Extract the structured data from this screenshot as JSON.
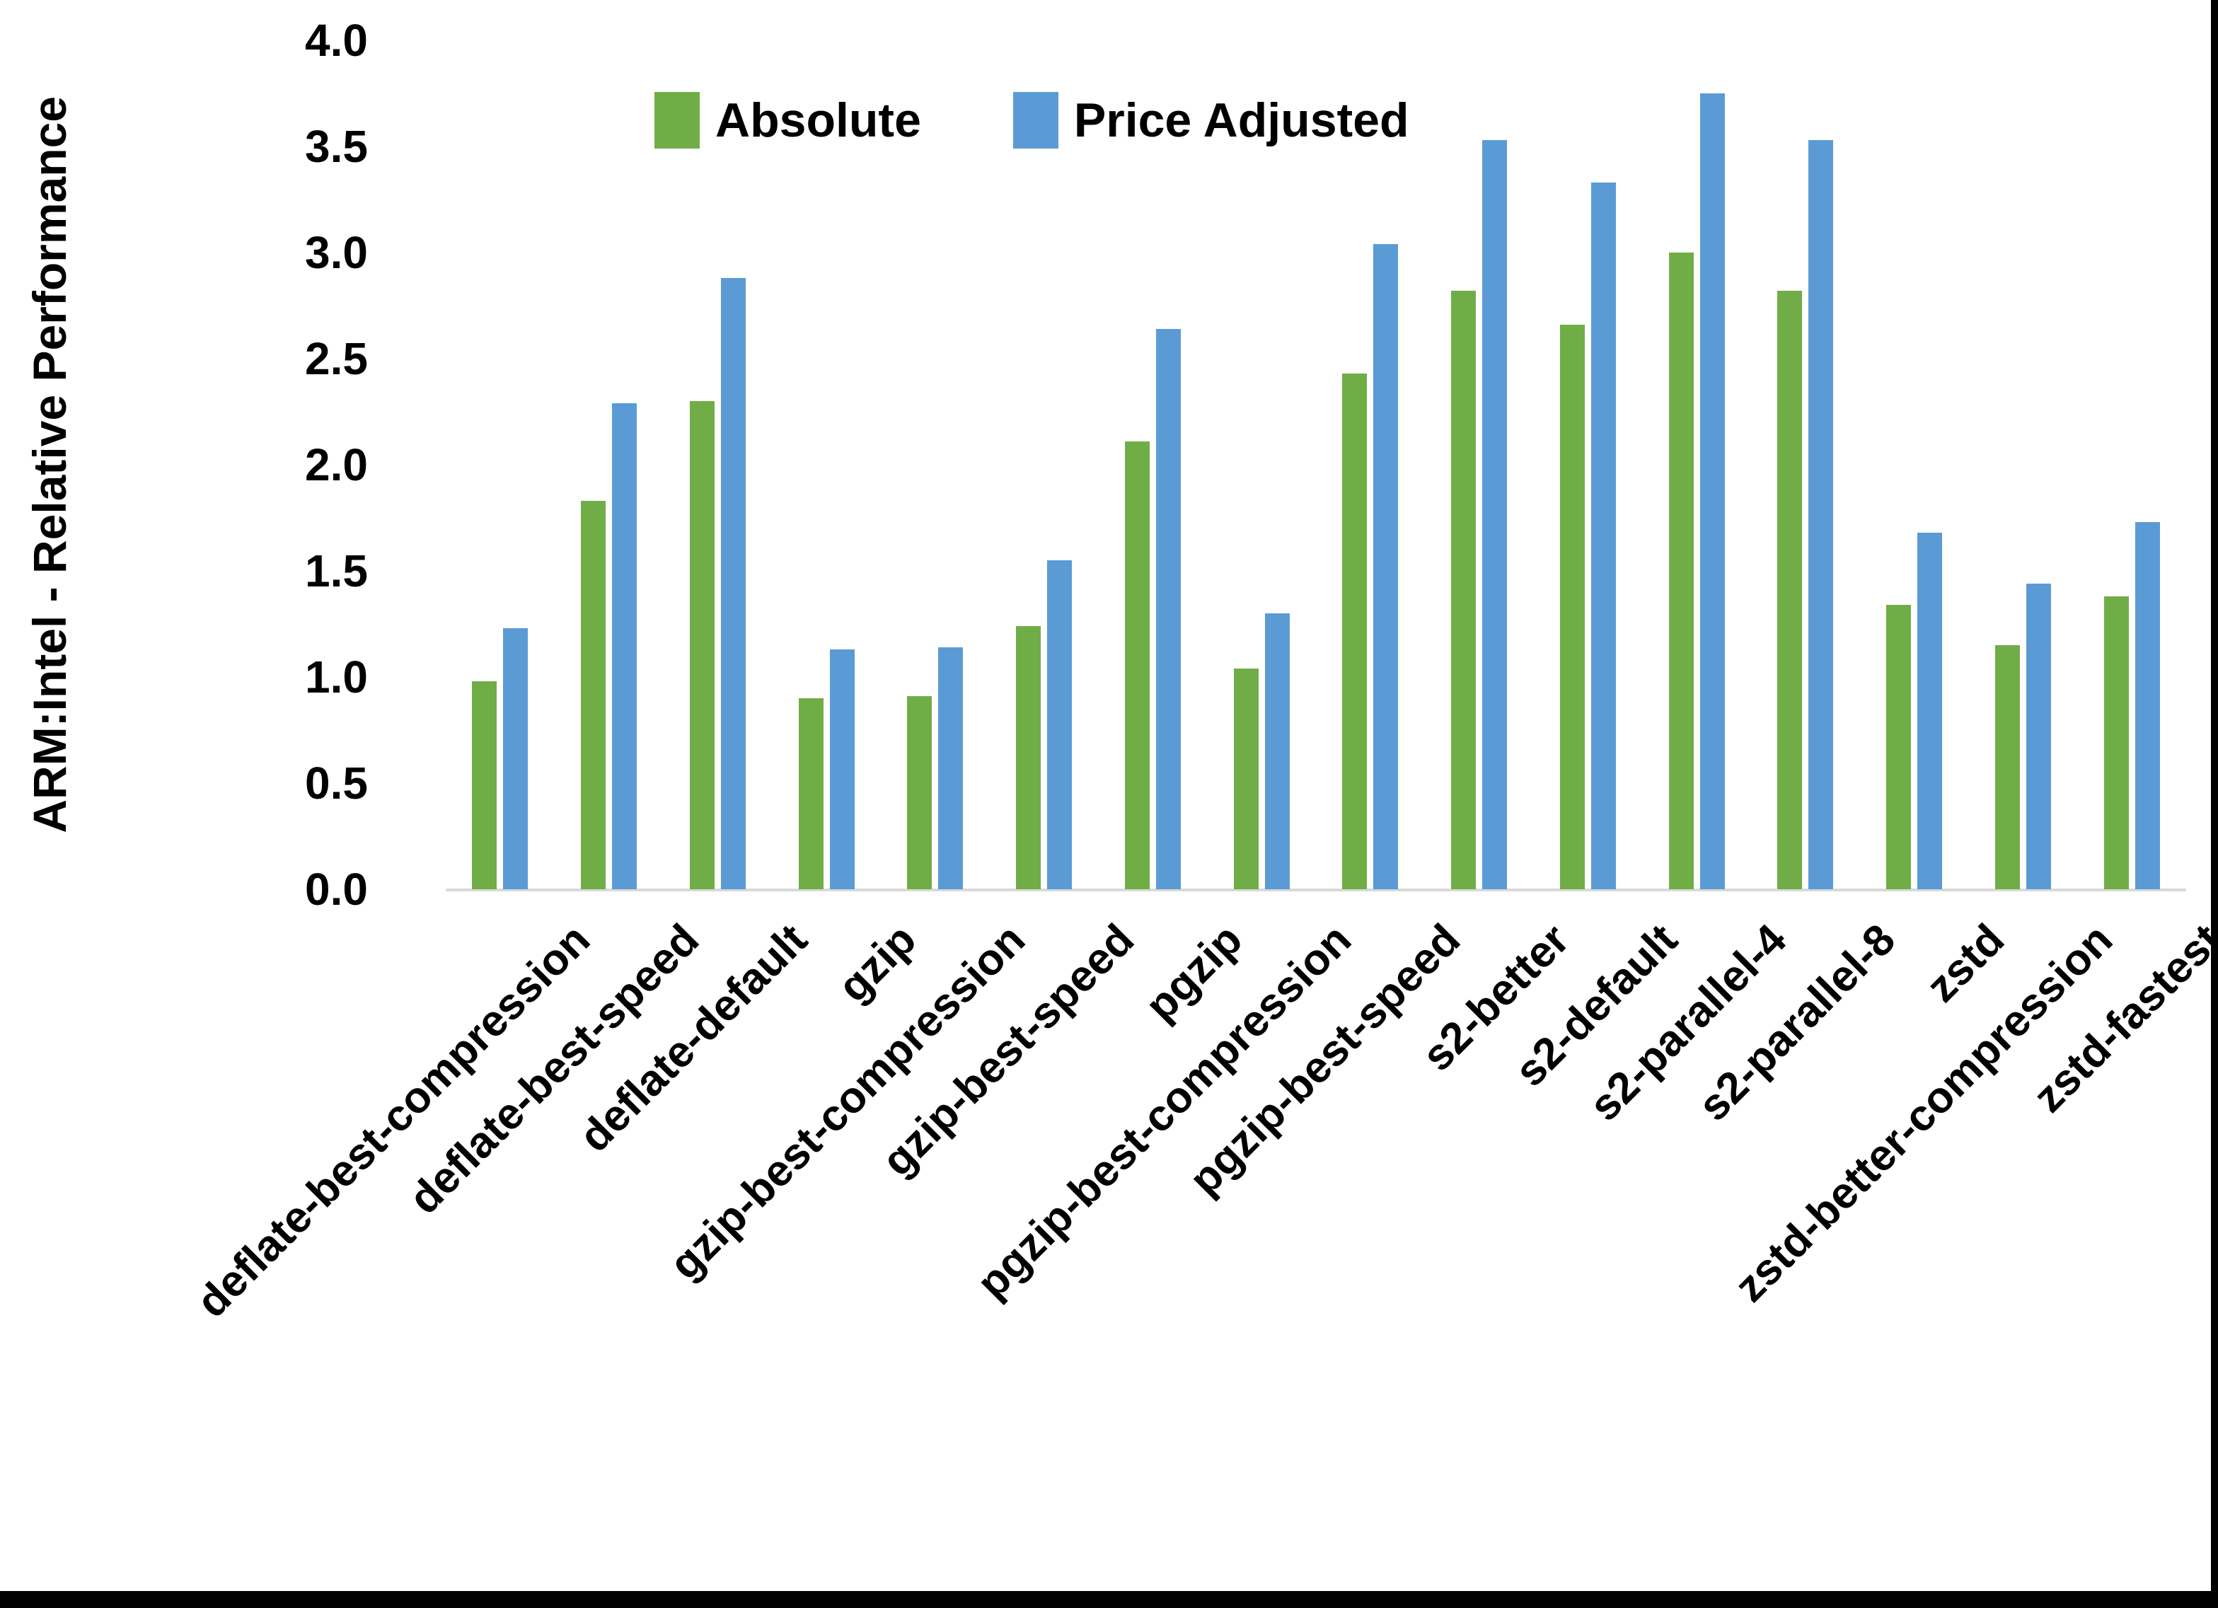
{
  "chart_data": {
    "type": "bar",
    "title": "",
    "ylabel": "ARM:Intel - Relative Performance",
    "xlabel": "",
    "ylim": [
      0.0,
      4.0
    ],
    "ytick_labels": [
      "0.0",
      "0.5",
      "1.0",
      "1.5",
      "2.0",
      "2.5",
      "3.0",
      "3.5",
      "4.0"
    ],
    "grid": false,
    "legend_position": "top",
    "axis_line_color": "#D9D9D9",
    "categories": [
      "deflate-best-compression",
      "deflate-best-speed",
      "deflate-default",
      "gzip",
      "gzip-best-compression",
      "gzip-best-speed",
      "pgzip",
      "pgzip-best-compression",
      "pgzip-best-speed",
      "s2-better",
      "s2-default",
      "s2-parallel-4",
      "s2-parallel-8",
      "zstd",
      "zstd-better-compression",
      "zstd-fastest"
    ],
    "series": [
      {
        "name": "Absolute",
        "color": "#70AD47",
        "values": [
          0.98,
          1.83,
          2.3,
          0.9,
          0.91,
          1.24,
          2.11,
          1.04,
          2.43,
          2.82,
          2.66,
          3.0,
          2.82,
          1.34,
          1.15,
          1.38
        ]
      },
      {
        "name": "Price Adjusted",
        "color": "#5B9BD5",
        "values": [
          1.23,
          2.29,
          2.88,
          1.13,
          1.14,
          1.55,
          2.64,
          1.3,
          3.04,
          3.53,
          3.33,
          3.75,
          3.53,
          1.68,
          1.44,
          1.73
        ]
      }
    ]
  }
}
